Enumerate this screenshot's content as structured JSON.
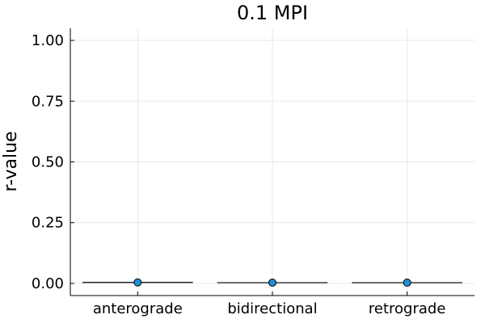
{
  "chart_data": {
    "type": "scatter",
    "title": "0.1 MPI",
    "xlabel": "",
    "ylabel": "r-value",
    "categories": [
      "anterograde",
      "bidirectional",
      "retrograde"
    ],
    "series": [
      {
        "values": [
          0.004,
          0.003,
          0.003
        ]
      }
    ],
    "ylim": [
      -0.05,
      1.05
    ],
    "yticks": [
      0.0,
      0.25,
      0.5,
      0.75,
      1.0
    ],
    "ytick_labels": [
      "0.00",
      "0.25",
      "0.50",
      "0.75",
      "1.00"
    ],
    "grid": true,
    "legend": "none",
    "colors": {
      "point": "#1f8fd7",
      "grid": "#e9e9e9",
      "axis": "#000000"
    }
  }
}
